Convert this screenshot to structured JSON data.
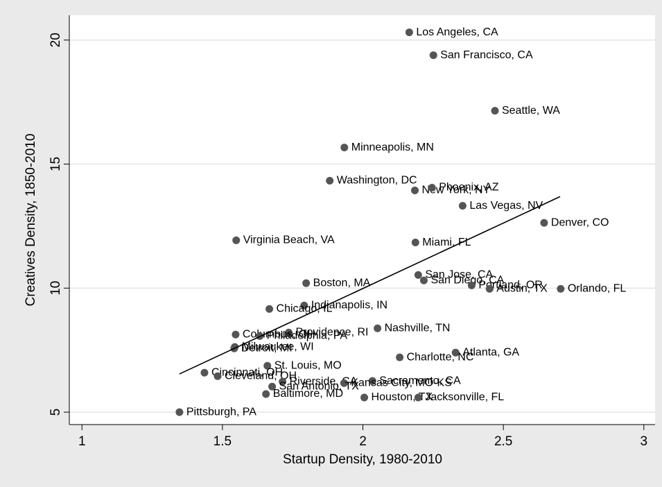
{
  "chart_data": {
    "type": "scatter",
    "xlabel": "Startup Density, 1980-2010",
    "ylabel": "Creatives Density, 1850-2010",
    "xlim": [
      0.955,
      3.04
    ],
    "ylim": [
      4.5,
      21
    ],
    "xticks": [
      1,
      1.5,
      2,
      2.5,
      3
    ],
    "yticks": [
      5,
      10,
      15,
      20
    ],
    "grid": true,
    "color": "#555555",
    "labels": [
      "Los Angeles, CA",
      "San Francisco, CA",
      "Seattle, WA",
      "Minneapolis, MN",
      "Washington, DC",
      "New York, NY",
      "Phoenix, AZ",
      "Las Vegas, NV",
      "Denver, CO",
      "Virginia Beach, VA",
      "Miami, FL",
      "San Jose, CA",
      "San Diego, CA",
      "Portland, OR",
      "Austin, TX",
      "Orlando, FL",
      "Boston, MA",
      "Indianapolis, IN",
      "Chicago, IL",
      "Nashville, TN",
      "Providence, RI",
      "Columbus, OH",
      "Philadelphia, PA",
      "Atlanta, GA",
      "Charlotte, NC",
      "Milwaukee, WI",
      "Detroit, MI",
      "St. Louis, MO",
      "Cincinnati, OH",
      "Cleveland, OH",
      "Riverside, CA",
      "Sacramento, CA",
      "Kansas City, MO-KS",
      "San Antonio, TX",
      "Baltimore, MD",
      "Houston, TX",
      "Jacksonville, FL",
      "Pittsburgh, PA"
    ],
    "x": [
      2.165,
      2.251,
      2.47,
      1.934,
      1.882,
      2.185,
      2.246,
      2.355,
      2.645,
      1.549,
      2.187,
      2.197,
      2.217,
      2.387,
      2.451,
      2.704,
      1.798,
      1.791,
      1.667,
      2.052,
      1.736,
      1.547,
      1.633,
      2.33,
      2.131,
      1.544,
      1.542,
      1.66,
      1.436,
      1.483,
      1.714,
      2.034,
      1.933,
      1.677,
      1.655,
      2.005,
      2.197,
      1.347
    ],
    "y": [
      20.31,
      19.39,
      17.15,
      15.67,
      14.33,
      13.94,
      14.05,
      13.32,
      12.63,
      11.93,
      11.84,
      10.53,
      10.31,
      10.11,
      9.97,
      9.97,
      10.2,
      9.3,
      9.16,
      8.38,
      8.21,
      8.13,
      8.07,
      7.4,
      7.21,
      7.63,
      7.57,
      6.87,
      6.59,
      6.45,
      6.23,
      6.26,
      6.17,
      6.03,
      5.73,
      5.59,
      5.59,
      5.0
    ],
    "fit_line": {
      "x": [
        1.347,
        2.702
      ],
      "y": [
        6.54,
        13.69
      ]
    }
  }
}
